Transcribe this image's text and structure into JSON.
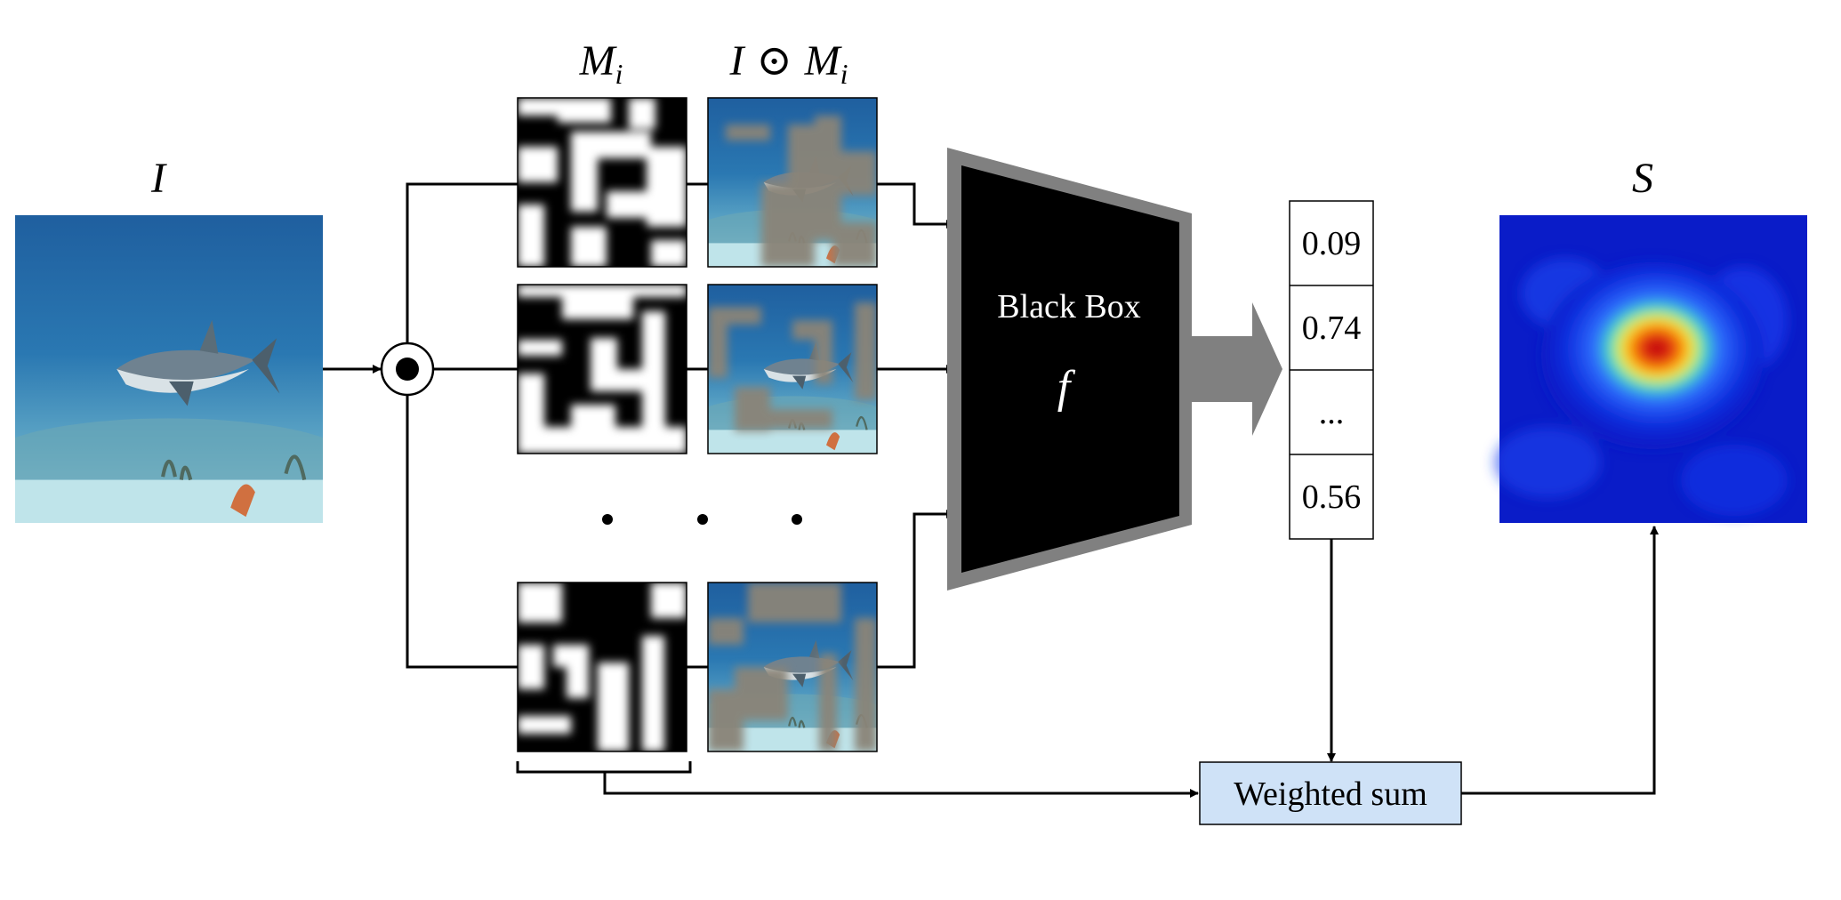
{
  "labels": {
    "input_image": "I",
    "mask": "M",
    "mask_sub": "i",
    "masked_image_I": "I",
    "odot": "⊙",
    "masked_image_M": "M",
    "masked_image_sub": "i",
    "saliency": "S",
    "black_box": "Black Box",
    "function": "f",
    "weighted_sum": "Weighted sum",
    "ellipsis_vector": "..."
  },
  "scores": [
    "0.09",
    "0.74",
    "...",
    "0.56"
  ],
  "colors": {
    "line": "#000000",
    "blackbox_fill": "#000000",
    "blackbox_border": "#808080",
    "arrow_gray": "#808080",
    "weighted_sum_fill": "#cfe2f7",
    "occlusion_gray": "#8a8478"
  },
  "icons": {
    "elementwise_product": "odot-circle-icon"
  }
}
